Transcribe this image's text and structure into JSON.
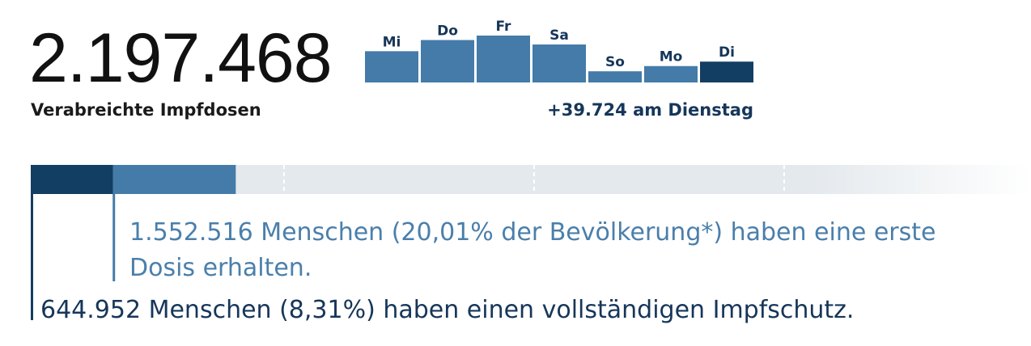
{
  "header": {
    "total_doses": "2.197.468",
    "total_label": "Verabreichte Impfdosen",
    "daily_caption": "+39.724 am Dienstag"
  },
  "texts": {
    "first_dose": "1.552.516 Menschen (20,01% der Bevölkerung*) haben eine erste Dosis erhalten.",
    "full_vacc": "644.952 Menschen (8,31%) haben einen vollständigen Impfschutz."
  },
  "colors": {
    "bar": "#447ba9",
    "bar_highlight": "#133e63",
    "label": "#16365a",
    "first_dose": "#447ba9",
    "full": "#133e63",
    "track": "#e4e9ed"
  },
  "chart_data": [
    {
      "type": "bar",
      "categories": [
        "Mi",
        "Do",
        "Fr",
        "Sa",
        "So",
        "Mo",
        "Di"
      ],
      "values": [
        42,
        57,
        63,
        51,
        15,
        22,
        28
      ],
      "highlight_index": 6,
      "ylim": [
        0,
        63
      ]
    },
    {
      "type": "bar",
      "orientation": "horizontal",
      "series": [
        {
          "name": "vollständiger Impfschutz",
          "value": 8.31
        },
        {
          "name": "erste Dosis",
          "value": 20.01
        }
      ],
      "xlim": [
        0,
        100
      ],
      "gridlines": [
        25,
        50,
        75
      ]
    }
  ]
}
